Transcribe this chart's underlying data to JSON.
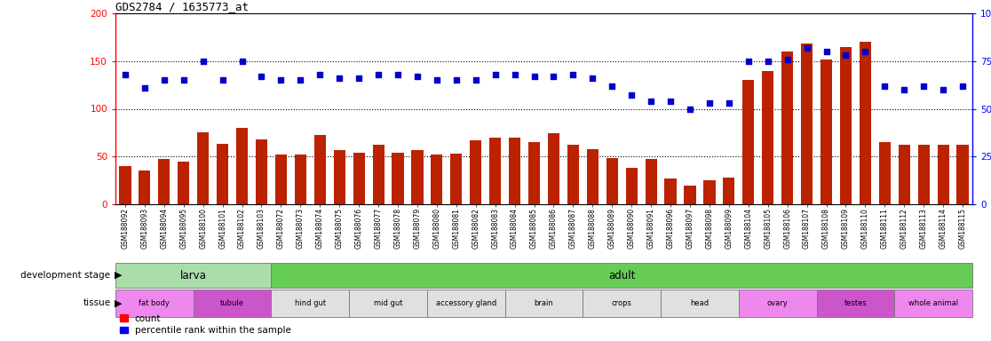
{
  "title": "GDS2784 / 1635773_at",
  "samples": [
    "GSM188092",
    "GSM188093",
    "GSM188094",
    "GSM188095",
    "GSM188100",
    "GSM188101",
    "GSM188102",
    "GSM188103",
    "GSM188072",
    "GSM188073",
    "GSM188074",
    "GSM188075",
    "GSM188076",
    "GSM188077",
    "GSM188078",
    "GSM188079",
    "GSM188080",
    "GSM188081",
    "GSM188082",
    "GSM188083",
    "GSM188084",
    "GSM188085",
    "GSM188086",
    "GSM188087",
    "GSM188088",
    "GSM188089",
    "GSM188090",
    "GSM188091",
    "GSM188096",
    "GSM188097",
    "GSM188098",
    "GSM188099",
    "GSM188104",
    "GSM188105",
    "GSM188106",
    "GSM188107",
    "GSM188108",
    "GSM188109",
    "GSM188110",
    "GSM188111",
    "GSM188112",
    "GSM188113",
    "GSM188114",
    "GSM188115"
  ],
  "counts": [
    40,
    35,
    47,
    45,
    75,
    63,
    80,
    68,
    52,
    52,
    73,
    57,
    54,
    62,
    54,
    57,
    52,
    53,
    67,
    70,
    70,
    65,
    74,
    62,
    58,
    48,
    38,
    47,
    27,
    20,
    25,
    28,
    130,
    140,
    160,
    168,
    152,
    165,
    170,
    65,
    62,
    62,
    62,
    62
  ],
  "percentiles": [
    68,
    61,
    65,
    65,
    75,
    65,
    75,
    67,
    65,
    65,
    68,
    66,
    66,
    68,
    68,
    67,
    65,
    65,
    65,
    68,
    68,
    67,
    67,
    68,
    66,
    62,
    57,
    54,
    54,
    50,
    53,
    53,
    75,
    75,
    76,
    82,
    80,
    78,
    80,
    62,
    60,
    62,
    60,
    62
  ],
  "dev_stages": [
    {
      "label": "larva",
      "start": 0,
      "end": 8,
      "color": "#aaddaa"
    },
    {
      "label": "adult",
      "start": 8,
      "end": 44,
      "color": "#66cc55"
    }
  ],
  "tissues": [
    {
      "label": "fat body",
      "start": 0,
      "end": 4,
      "color": "#ee88ee"
    },
    {
      "label": "tubule",
      "start": 4,
      "end": 8,
      "color": "#cc55cc"
    },
    {
      "label": "hind gut",
      "start": 8,
      "end": 12,
      "color": "#e0e0e0"
    },
    {
      "label": "mid gut",
      "start": 12,
      "end": 16,
      "color": "#e0e0e0"
    },
    {
      "label": "accessory gland",
      "start": 16,
      "end": 20,
      "color": "#e0e0e0"
    },
    {
      "label": "brain",
      "start": 20,
      "end": 24,
      "color": "#e0e0e0"
    },
    {
      "label": "crops",
      "start": 24,
      "end": 28,
      "color": "#e0e0e0"
    },
    {
      "label": "head",
      "start": 28,
      "end": 32,
      "color": "#e0e0e0"
    },
    {
      "label": "ovary",
      "start": 32,
      "end": 36,
      "color": "#ee88ee"
    },
    {
      "label": "testes",
      "start": 36,
      "end": 40,
      "color": "#cc55cc"
    },
    {
      "label": "whole animal",
      "start": 40,
      "end": 44,
      "color": "#ee88ee"
    }
  ],
  "bar_color": "#bb2200",
  "dot_color": "#0000cc",
  "ylim_left": [
    0,
    200
  ],
  "ylim_right": [
    0,
    100
  ],
  "yticks_left": [
    0,
    50,
    100,
    150,
    200
  ],
  "yticks_right": [
    0,
    25,
    50,
    75,
    100
  ],
  "yticklabels_right": [
    "0",
    "25",
    "50",
    "75",
    "100%"
  ]
}
